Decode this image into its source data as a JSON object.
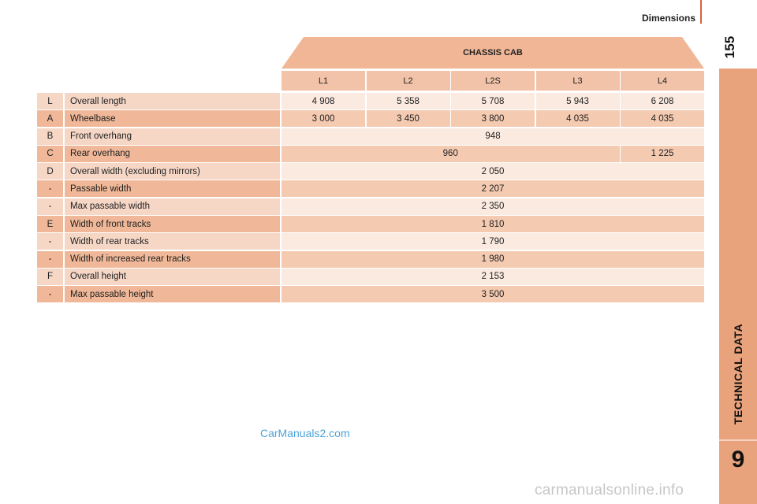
{
  "header": {
    "section_title": "Dimensions",
    "page_number": "155"
  },
  "sidebar": {
    "section_label": "TECHNICAL DATA",
    "chapter_number": "9"
  },
  "table": {
    "group_title": "CHASSIS CAB",
    "columns": [
      "L1",
      "L2",
      "L2S",
      "L3",
      "L4"
    ],
    "rows": [
      {
        "code": "L",
        "label": "Overall length",
        "values": [
          {
            "text": "4 908",
            "span": 1
          },
          {
            "text": "5 358",
            "span": 1
          },
          {
            "text": "5 708",
            "span": 1
          },
          {
            "text": "5 943",
            "span": 1
          },
          {
            "text": "6 208",
            "span": 1
          }
        ]
      },
      {
        "code": "A",
        "label": "Wheelbase",
        "values": [
          {
            "text": "3 000",
            "span": 1
          },
          {
            "text": "3 450",
            "span": 1
          },
          {
            "text": "3 800",
            "span": 1
          },
          {
            "text": "4 035",
            "span": 1
          },
          {
            "text": "4 035",
            "span": 1
          }
        ]
      },
      {
        "code": "B",
        "label": "Front overhang",
        "values": [
          {
            "text": "948",
            "span": 5
          }
        ]
      },
      {
        "code": "C",
        "label": "Rear overhang",
        "values": [
          {
            "text": "960",
            "span": 4
          },
          {
            "text": "1 225",
            "span": 1
          }
        ]
      },
      {
        "code": "D",
        "label": "Overall width (excluding mirrors)",
        "values": [
          {
            "text": "2 050",
            "span": 5
          }
        ]
      },
      {
        "code": "-",
        "label": "Passable width",
        "values": [
          {
            "text": "2 207",
            "span": 5
          }
        ]
      },
      {
        "code": "-",
        "label": "Max passable width",
        "values": [
          {
            "text": "2 350",
            "span": 5
          }
        ]
      },
      {
        "code": "E",
        "label": "Width of front tracks",
        "values": [
          {
            "text": "1 810",
            "span": 5
          }
        ]
      },
      {
        "code": "-",
        "label": "Width of rear tracks",
        "values": [
          {
            "text": "1 790",
            "span": 5
          }
        ]
      },
      {
        "code": "-",
        "label": "Width of increased rear tracks",
        "values": [
          {
            "text": "1 980",
            "span": 5
          }
        ]
      },
      {
        "code": "F",
        "label": "Overall height",
        "values": [
          {
            "text": "2 153",
            "span": 5
          }
        ]
      },
      {
        "code": "-",
        "label": "Max passable height",
        "values": [
          {
            "text": "3 500",
            "span": 5
          }
        ]
      }
    ]
  },
  "watermarks": {
    "primary": "CarManuals2.com",
    "secondary": "carmanualsonline.info"
  }
}
